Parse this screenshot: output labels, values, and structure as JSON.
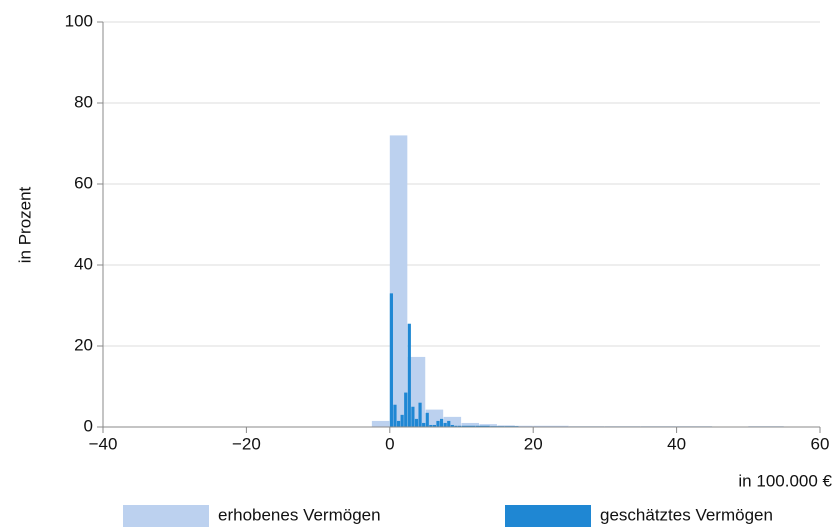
{
  "chart_data": {
    "type": "histogram",
    "y_label": "in Prozent",
    "x_label": "in 100.000 €",
    "xlim": [
      -40,
      60
    ],
    "ylim": [
      0,
      100
    ],
    "xticks": [
      {
        "value": -40,
        "label": "−40"
      },
      {
        "value": -20,
        "label": "−20"
      },
      0,
      20,
      40,
      60
    ],
    "yticks": [
      0,
      20,
      40,
      60,
      80,
      100
    ],
    "grid": true,
    "legend": "bottom",
    "series": [
      {
        "name": "erhobenes Vermögen",
        "color": "#bcd1ef",
        "bins": [
          -2.5,
          0,
          2.5,
          5,
          7.5,
          10,
          12.5,
          15,
          17.5,
          20,
          25,
          30,
          35,
          40,
          45,
          50,
          55
        ],
        "values": [
          1.5,
          72,
          17.3,
          4.3,
          2.5,
          1,
          0.7,
          0.4,
          0.3,
          0.3,
          0.2,
          0.2,
          0.2,
          0.2,
          0.1,
          0.2
        ]
      },
      {
        "name": "geschätztes Vermögen",
        "color": "#1f87d3",
        "bins": [
          0,
          0.5,
          1,
          1.5,
          2,
          2.5,
          3,
          3.5,
          4,
          4.5,
          5,
          5.5,
          6,
          6.5,
          7,
          7.5,
          8,
          8.5,
          9,
          9.5,
          10,
          12,
          14,
          16,
          18
        ],
        "values": [
          33,
          5.5,
          1.5,
          3,
          8.5,
          25.5,
          5,
          2,
          6,
          1,
          3.5,
          0.5,
          0.5,
          1.5,
          2,
          1,
          1.5,
          0.5,
          0.3,
          0.3,
          0.3,
          0.3,
          0.2,
          0.2
        ]
      }
    ]
  }
}
